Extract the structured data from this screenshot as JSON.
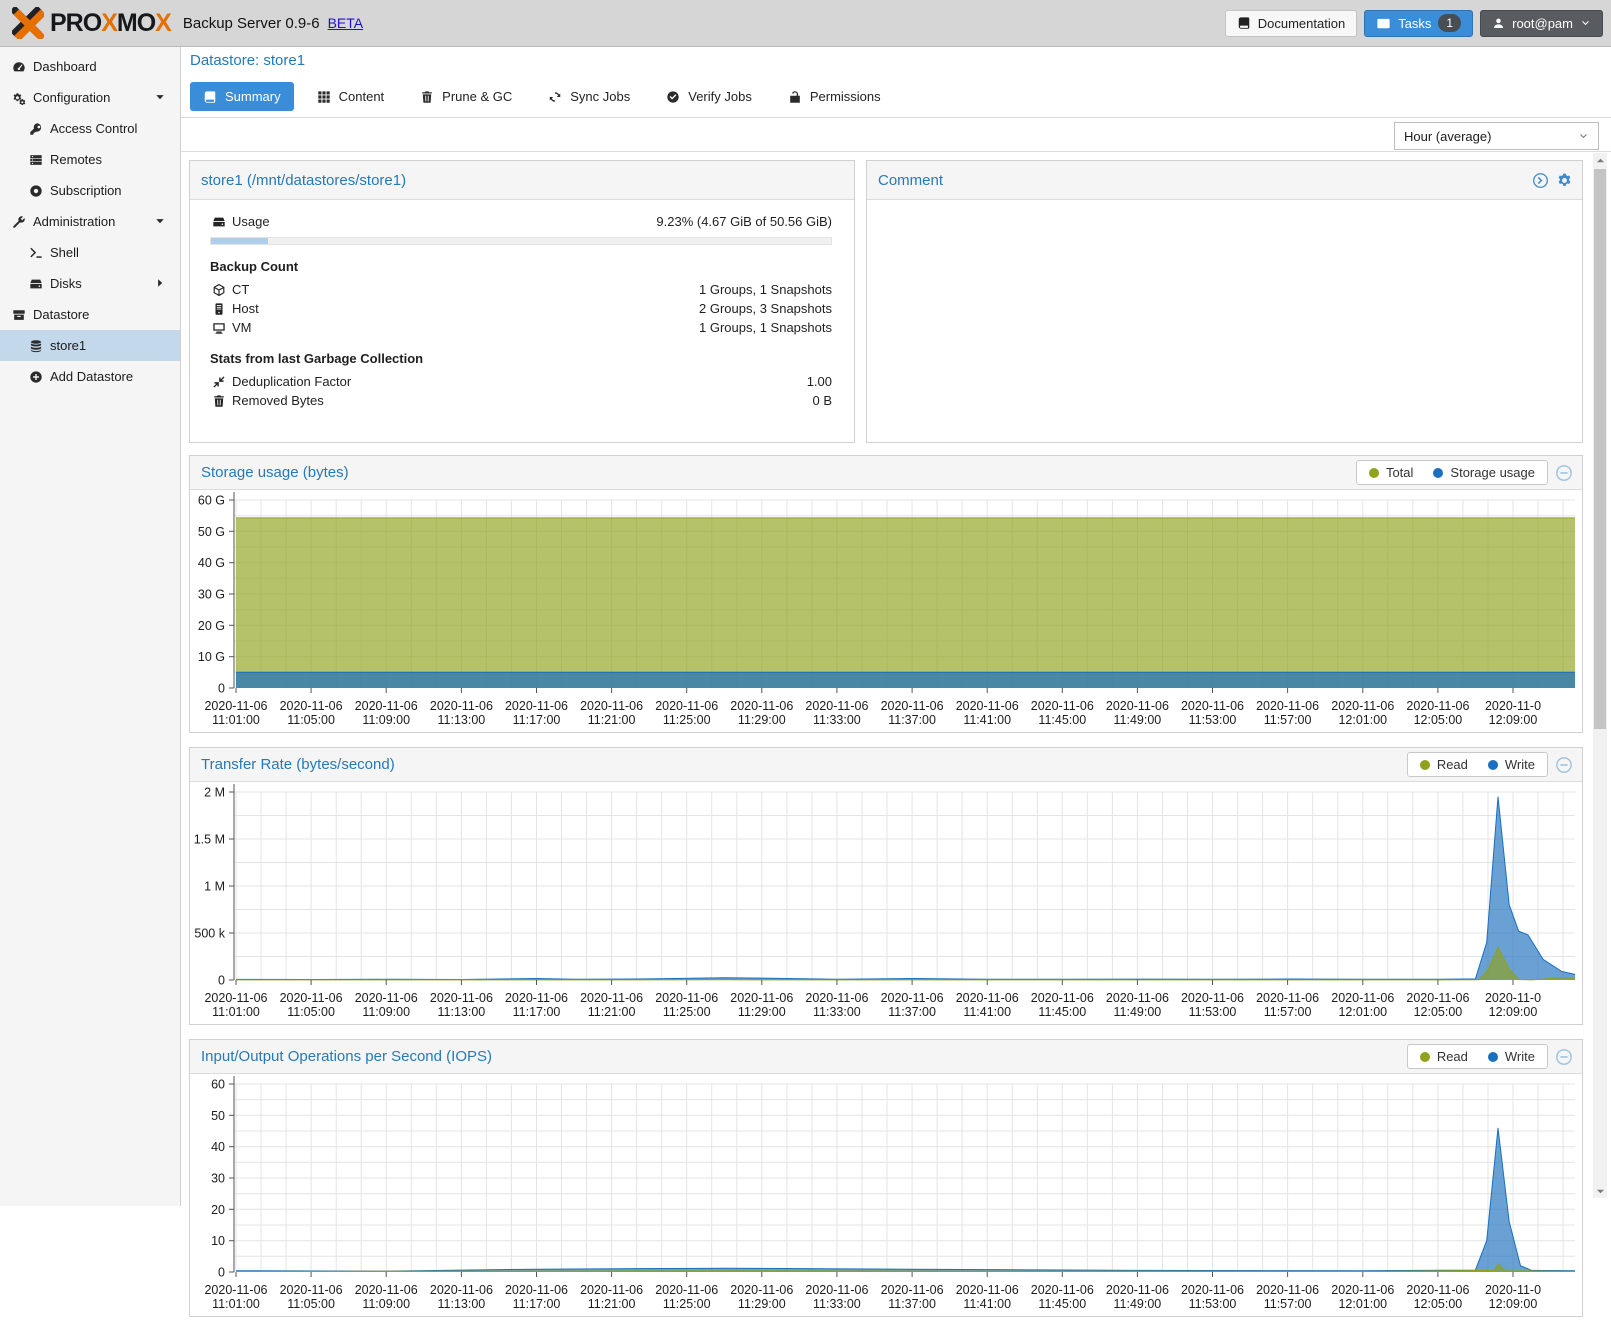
{
  "header": {
    "brand_parts": [
      {
        "text": "PRO",
        "color": "#17181c"
      },
      {
        "text": "X",
        "color": "#e57000"
      },
      {
        "text": "MO",
        "color": "#17181c"
      },
      {
        "text": "X",
        "color": "#e57000"
      }
    ],
    "product": "Backup Server 0.9-6",
    "beta": "BETA",
    "documentation_label": "Documentation",
    "tasks_label": "Tasks",
    "tasks_count": "1",
    "user": "root@pam"
  },
  "sidebar": {
    "items": [
      {
        "label": "Dashboard",
        "icon": "dashboard-icon",
        "indent": 0
      },
      {
        "label": "Configuration",
        "icon": "gears-icon",
        "indent": 0,
        "expander": "down"
      },
      {
        "label": "Access Control",
        "icon": "key-icon",
        "indent": 1
      },
      {
        "label": "Remotes",
        "icon": "remotes-icon",
        "indent": 1
      },
      {
        "label": "Subscription",
        "icon": "lifering-icon",
        "indent": 1
      },
      {
        "label": "Administration",
        "icon": "wrench-icon",
        "indent": 0,
        "expander": "down"
      },
      {
        "label": "Shell",
        "icon": "terminal-icon",
        "indent": 1
      },
      {
        "label": "Disks",
        "icon": "disks-icon",
        "indent": 1,
        "expander": "right"
      },
      {
        "label": "Datastore",
        "icon": "datastore-icon",
        "indent": 0
      },
      {
        "label": "store1",
        "icon": "database-icon",
        "indent": 1,
        "selected": true
      },
      {
        "label": "Add Datastore",
        "icon": "plus-circle-icon",
        "indent": 1
      }
    ]
  },
  "page": {
    "title": "Datastore: store1",
    "tabs": [
      {
        "label": "Summary",
        "icon": "book-icon",
        "active": true
      },
      {
        "label": "Content",
        "icon": "grid-icon",
        "active": false
      },
      {
        "label": "Prune & GC",
        "icon": "trash-icon",
        "active": false
      },
      {
        "label": "Sync Jobs",
        "icon": "sync-icon",
        "active": false
      },
      {
        "label": "Verify Jobs",
        "icon": "check-circle-icon",
        "active": false
      },
      {
        "label": "Permissions",
        "icon": "unlock-icon",
        "active": false
      }
    ],
    "timeframe": "Hour (average)"
  },
  "summary_panel": {
    "title": "store1 (/mnt/datastores/store1)",
    "usage_label": "Usage",
    "usage_value": "9.23% (4.67 GiB of 50.56 GiB)",
    "usage_percent": 9.23,
    "backup_count_title": "Backup Count",
    "backup_rows": [
      {
        "icon": "cube-icon",
        "label": "CT",
        "value": "1 Groups, 1 Snapshots"
      },
      {
        "icon": "server-icon",
        "label": "Host",
        "value": "2 Groups, 3 Snapshots"
      },
      {
        "icon": "desktop-icon",
        "label": "VM",
        "value": "1 Groups, 1 Snapshots"
      }
    ],
    "gc_title": "Stats from last Garbage Collection",
    "gc_rows": [
      {
        "icon": "compress-icon",
        "label": "Deduplication Factor",
        "value": "1.00"
      },
      {
        "icon": "trash-icon",
        "label": "Removed Bytes",
        "value": "0 B"
      }
    ]
  },
  "comment_panel": {
    "title": "Comment"
  },
  "chart_data": [
    {
      "type": "area",
      "title": "Storage usage (bytes)",
      "ylabel": "bytes",
      "ymax": 60,
      "yticks": [
        {
          "v": 0,
          "label": "0"
        },
        {
          "v": 10,
          "label": "10 G"
        },
        {
          "v": 20,
          "label": "20 G"
        },
        {
          "v": 30,
          "label": "30 G"
        },
        {
          "v": 40,
          "label": "40 G"
        },
        {
          "v": 50,
          "label": "50 G"
        },
        {
          "v": 60,
          "label": "60 G"
        }
      ],
      "xticks": [
        {
          "m": 0,
          "l1": "2020-11-06",
          "l2": "11:01:00"
        },
        {
          "m": 4,
          "l1": "2020-11-06",
          "l2": "11:05:00"
        },
        {
          "m": 8,
          "l1": "2020-11-06",
          "l2": "11:09:00"
        },
        {
          "m": 12,
          "l1": "2020-11-06",
          "l2": "11:13:00"
        },
        {
          "m": 16,
          "l1": "2020-11-06",
          "l2": "11:17:00"
        },
        {
          "m": 20,
          "l1": "2020-11-06",
          "l2": "11:21:00"
        },
        {
          "m": 24,
          "l1": "2020-11-06",
          "l2": "11:25:00"
        },
        {
          "m": 28,
          "l1": "2020-11-06",
          "l2": "11:29:00"
        },
        {
          "m": 32,
          "l1": "2020-11-06",
          "l2": "11:33:00"
        },
        {
          "m": 36,
          "l1": "2020-11-06",
          "l2": "11:37:00"
        },
        {
          "m": 40,
          "l1": "2020-11-06",
          "l2": "11:41:00"
        },
        {
          "m": 44,
          "l1": "2020-11-06",
          "l2": "11:45:00"
        },
        {
          "m": 48,
          "l1": "2020-11-06",
          "l2": "11:49:00"
        },
        {
          "m": 52,
          "l1": "2020-11-06",
          "l2": "11:53:00"
        },
        {
          "m": 56,
          "l1": "2020-11-06",
          "l2": "11:57:00"
        },
        {
          "m": 60,
          "l1": "2020-11-06",
          "l2": "12:01:00"
        },
        {
          "m": 64,
          "l1": "2020-11-06",
          "l2": "12:05:00"
        },
        {
          "m": 68,
          "l1": "2020-11-0",
          "l2": "12:09:00"
        }
      ],
      "legend": [
        {
          "label": "Total",
          "color": "#8fa21a"
        },
        {
          "label": "Storage usage",
          "color": "#1a6fbf"
        }
      ],
      "series": [
        {
          "name": "Total",
          "color": "#8fa21a",
          "fill_alpha": 0.65,
          "points": [
            [
              0,
              54.3
            ],
            [
              71.3,
              54.3
            ]
          ]
        },
        {
          "name": "Storage usage",
          "color": "#1a6fbf",
          "fill_alpha": 0.7,
          "points": [
            [
              0,
              5.0
            ],
            [
              71.3,
              5.0
            ]
          ]
        }
      ]
    },
    {
      "type": "area",
      "title": "Transfer Rate (bytes/second)",
      "ylabel": "bytes/second",
      "ymax": 2000000,
      "yticks": [
        {
          "v": 0,
          "label": "0"
        },
        {
          "v": 500000,
          "label": "500 k"
        },
        {
          "v": 1000000,
          "label": "1 M"
        },
        {
          "v": 1500000,
          "label": "1.5 M"
        },
        {
          "v": 2000000,
          "label": "2 M"
        }
      ],
      "xticks": [
        {
          "m": 0,
          "l1": "2020-11-06",
          "l2": "11:01:00"
        },
        {
          "m": 4,
          "l1": "2020-11-06",
          "l2": "11:05:00"
        },
        {
          "m": 8,
          "l1": "2020-11-06",
          "l2": "11:09:00"
        },
        {
          "m": 12,
          "l1": "2020-11-06",
          "l2": "11:13:00"
        },
        {
          "m": 16,
          "l1": "2020-11-06",
          "l2": "11:17:00"
        },
        {
          "m": 20,
          "l1": "2020-11-06",
          "l2": "11:21:00"
        },
        {
          "m": 24,
          "l1": "2020-11-06",
          "l2": "11:25:00"
        },
        {
          "m": 28,
          "l1": "2020-11-06",
          "l2": "11:29:00"
        },
        {
          "m": 32,
          "l1": "2020-11-06",
          "l2": "11:33:00"
        },
        {
          "m": 36,
          "l1": "2020-11-06",
          "l2": "11:37:00"
        },
        {
          "m": 40,
          "l1": "2020-11-06",
          "l2": "11:41:00"
        },
        {
          "m": 44,
          "l1": "2020-11-06",
          "l2": "11:45:00"
        },
        {
          "m": 48,
          "l1": "2020-11-06",
          "l2": "11:49:00"
        },
        {
          "m": 52,
          "l1": "2020-11-06",
          "l2": "11:53:00"
        },
        {
          "m": 56,
          "l1": "2020-11-06",
          "l2": "11:57:00"
        },
        {
          "m": 60,
          "l1": "2020-11-06",
          "l2": "12:01:00"
        },
        {
          "m": 64,
          "l1": "2020-11-06",
          "l2": "12:05:00"
        },
        {
          "m": 68,
          "l1": "2020-11-0",
          "l2": "12:09:00"
        }
      ],
      "legend": [
        {
          "label": "Read",
          "color": "#8fa21a"
        },
        {
          "label": "Write",
          "color": "#1a6fbf"
        }
      ],
      "series": [
        {
          "name": "Write",
          "color": "#1a6fbf",
          "fill_alpha": 0.65,
          "points": [
            [
              0,
              6000
            ],
            [
              4,
              5000
            ],
            [
              8,
              7000
            ],
            [
              12,
              5000
            ],
            [
              16,
              16000
            ],
            [
              18,
              9000
            ],
            [
              22,
              12000
            ],
            [
              26,
              25000
            ],
            [
              28,
              20000
            ],
            [
              32,
              9000
            ],
            [
              36,
              16000
            ],
            [
              40,
              7000
            ],
            [
              44,
              8000
            ],
            [
              48,
              10000
            ],
            [
              52,
              7000
            ],
            [
              56,
              11000
            ],
            [
              60,
              8000
            ],
            [
              64,
              7000
            ],
            [
              66,
              12000
            ],
            [
              66.6,
              400000
            ],
            [
              67.2,
              1950000
            ],
            [
              67.8,
              800000
            ],
            [
              68.3,
              520000
            ],
            [
              68.8,
              480000
            ],
            [
              69.6,
              220000
            ],
            [
              70.6,
              90000
            ],
            [
              71.3,
              60000
            ]
          ]
        },
        {
          "name": "Read",
          "color": "#8fa21a",
          "fill_alpha": 0.65,
          "points": [
            [
              0,
              800
            ],
            [
              16,
              1500
            ],
            [
              26,
              2500
            ],
            [
              36,
              1500
            ],
            [
              50,
              800
            ],
            [
              64,
              600
            ],
            [
              66.2,
              2000
            ],
            [
              66.7,
              120000
            ],
            [
              67.2,
              350000
            ],
            [
              67.8,
              120000
            ],
            [
              68.3,
              5000
            ],
            [
              69,
              1500
            ],
            [
              69.8,
              12000
            ],
            [
              70.6,
              28000
            ],
            [
              71.3,
              20000
            ]
          ]
        }
      ]
    },
    {
      "type": "area",
      "title": "Input/Output Operations per Second (IOPS)",
      "ylabel": "IOPS",
      "ymax": 60,
      "yticks": [
        {
          "v": 0,
          "label": "0"
        },
        {
          "v": 10,
          "label": "10"
        },
        {
          "v": 20,
          "label": "20"
        },
        {
          "v": 30,
          "label": "30"
        },
        {
          "v": 40,
          "label": "40"
        },
        {
          "v": 50,
          "label": "50"
        },
        {
          "v": 60,
          "label": "60"
        }
      ],
      "xticks": [
        {
          "m": 0,
          "l1": "2020-11-06",
          "l2": "11:01:00"
        },
        {
          "m": 4,
          "l1": "2020-11-06",
          "l2": "11:05:00"
        },
        {
          "m": 8,
          "l1": "2020-11-06",
          "l2": "11:09:00"
        },
        {
          "m": 12,
          "l1": "2020-11-06",
          "l2": "11:13:00"
        },
        {
          "m": 16,
          "l1": "2020-11-06",
          "l2": "11:17:00"
        },
        {
          "m": 20,
          "l1": "2020-11-06",
          "l2": "11:21:00"
        },
        {
          "m": 24,
          "l1": "2020-11-06",
          "l2": "11:25:00"
        },
        {
          "m": 28,
          "l1": "2020-11-06",
          "l2": "11:29:00"
        },
        {
          "m": 32,
          "l1": "2020-11-06",
          "l2": "11:33:00"
        },
        {
          "m": 36,
          "l1": "2020-11-06",
          "l2": "11:37:00"
        },
        {
          "m": 40,
          "l1": "2020-11-06",
          "l2": "11:41:00"
        },
        {
          "m": 44,
          "l1": "2020-11-06",
          "l2": "11:45:00"
        },
        {
          "m": 48,
          "l1": "2020-11-06",
          "l2": "11:49:00"
        },
        {
          "m": 52,
          "l1": "2020-11-06",
          "l2": "11:53:00"
        },
        {
          "m": 56,
          "l1": "2020-11-06",
          "l2": "11:57:00"
        },
        {
          "m": 60,
          "l1": "2020-11-06",
          "l2": "12:01:00"
        },
        {
          "m": 64,
          "l1": "2020-11-06",
          "l2": "12:05:00"
        },
        {
          "m": 68,
          "l1": "2020-11-0",
          "l2": "12:09:00"
        }
      ],
      "legend": [
        {
          "label": "Read",
          "color": "#8fa21a"
        },
        {
          "label": "Write",
          "color": "#1a6fbf"
        }
      ],
      "series": [
        {
          "name": "Write",
          "color": "#1a6fbf",
          "fill_alpha": 0.65,
          "points": [
            [
              0,
              0.4
            ],
            [
              8,
              0.3
            ],
            [
              16,
              0.9
            ],
            [
              26,
              1.2
            ],
            [
              36,
              0.9
            ],
            [
              48,
              0.5
            ],
            [
              60,
              0.4
            ],
            [
              66,
              0.6
            ],
            [
              66.6,
              10
            ],
            [
              67.2,
              46
            ],
            [
              67.8,
              16
            ],
            [
              68.4,
              2
            ],
            [
              69,
              0.5
            ],
            [
              71.3,
              0.4
            ]
          ]
        },
        {
          "name": "Read",
          "color": "#8fa21a",
          "fill_alpha": 0.65,
          "points": [
            [
              0,
              0.15
            ],
            [
              16,
              0.3
            ],
            [
              26,
              0.4
            ],
            [
              36,
              0.3
            ],
            [
              60,
              0.15
            ],
            [
              67,
              0.5
            ],
            [
              67.2,
              2.5
            ],
            [
              67.6,
              0.4
            ],
            [
              71.3,
              0.15
            ]
          ]
        }
      ]
    }
  ],
  "colors": {
    "accent_blue": "#3a8dd8",
    "title_blue": "#2679b8",
    "brand_orange": "#e57000",
    "series_olive": "#8fa21a",
    "series_blue": "#1a6fbf"
  }
}
